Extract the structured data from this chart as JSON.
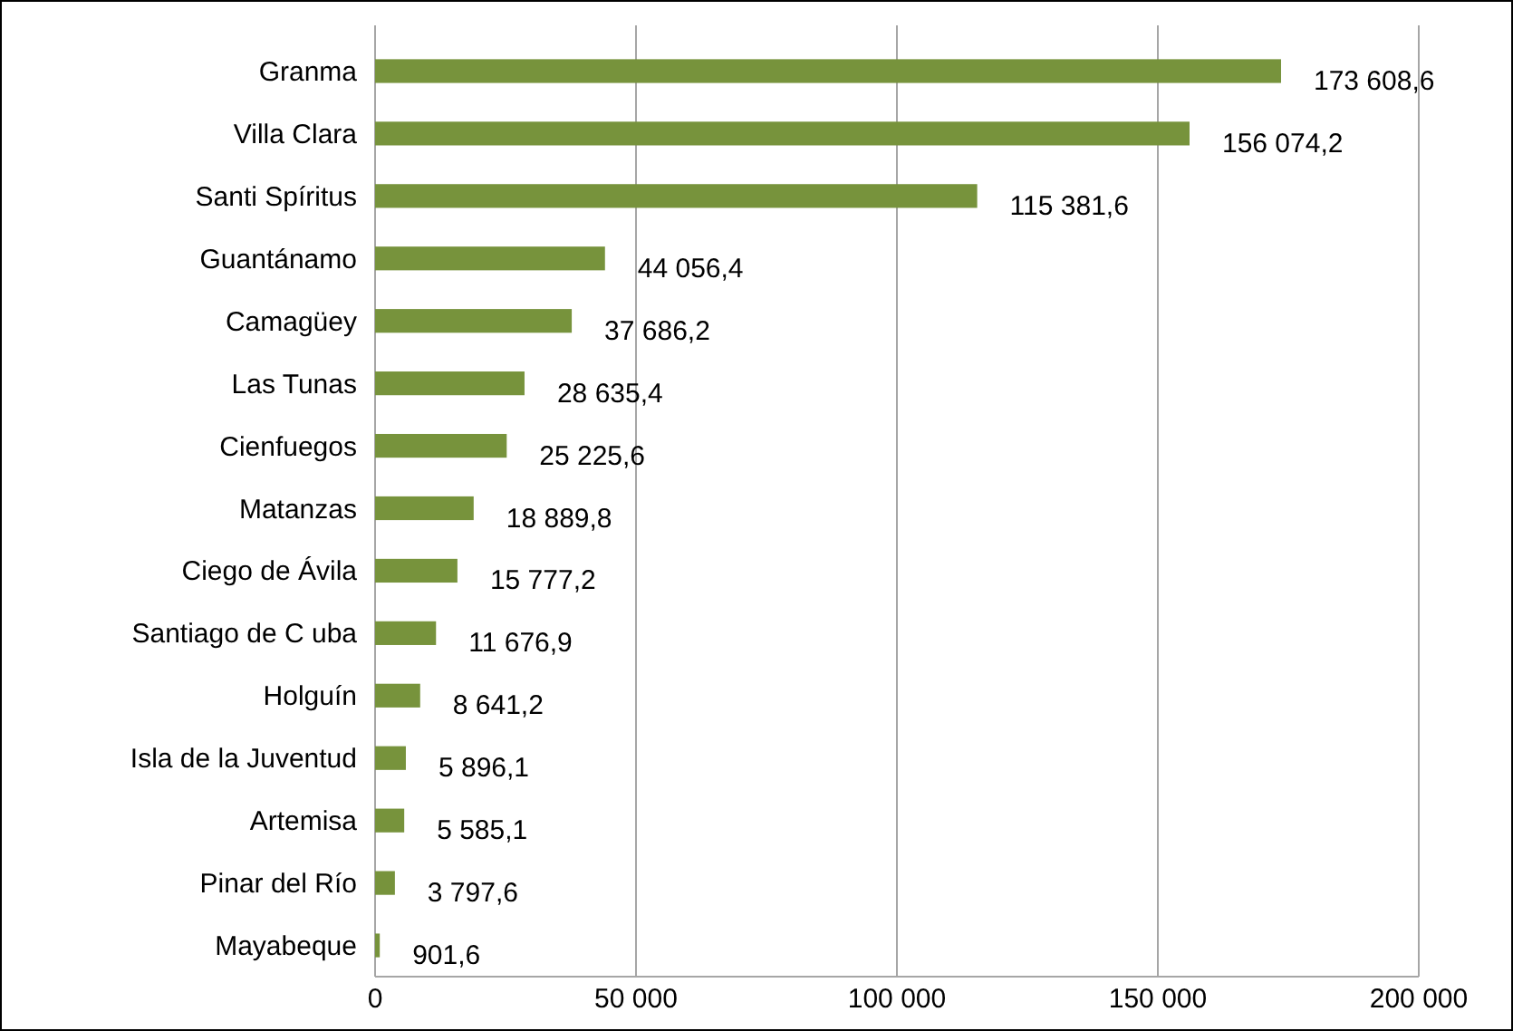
{
  "chart_data": {
    "type": "bar",
    "orientation": "horizontal",
    "categories": [
      "Granma",
      "Villa Clara",
      "Santi Spíritus",
      "Guantánamo",
      "Camagüey",
      "Las Tunas",
      "Cienfuegos",
      "Matanzas",
      "Ciego de Ávila",
      "Santiago de C uba",
      "Holguín",
      "Isla de la Juventud",
      "Artemisa",
      "Pinar del Río",
      "Mayabeque"
    ],
    "values": [
      173608.6,
      156074.2,
      115381.6,
      44056.4,
      37686.2,
      28635.4,
      25225.6,
      18889.8,
      15777.2,
      11676.9,
      8641.2,
      5896.1,
      5585.1,
      3797.6,
      901.6
    ],
    "value_labels": [
      "173 608,6",
      "156 074,2",
      "115 381,6",
      "44 056,4",
      "37 686,2",
      "28 635,4",
      "25 225,6",
      "18 889,8",
      "15 777,2",
      "11 676,9",
      "8 641,2",
      "5 896,1",
      "5 585,1",
      "3 797,6",
      "901,6"
    ],
    "color": "#77933c",
    "xlim": [
      0,
      200000
    ],
    "xticks": [
      {
        "value": 0,
        "label": "0"
      },
      {
        "value": 50000,
        "label": "50 000"
      },
      {
        "value": 100000,
        "label": "100 000"
      },
      {
        "value": 150000,
        "label": "150 000"
      },
      {
        "value": 200000,
        "label": "200 000"
      }
    ],
    "grid": "x"
  }
}
